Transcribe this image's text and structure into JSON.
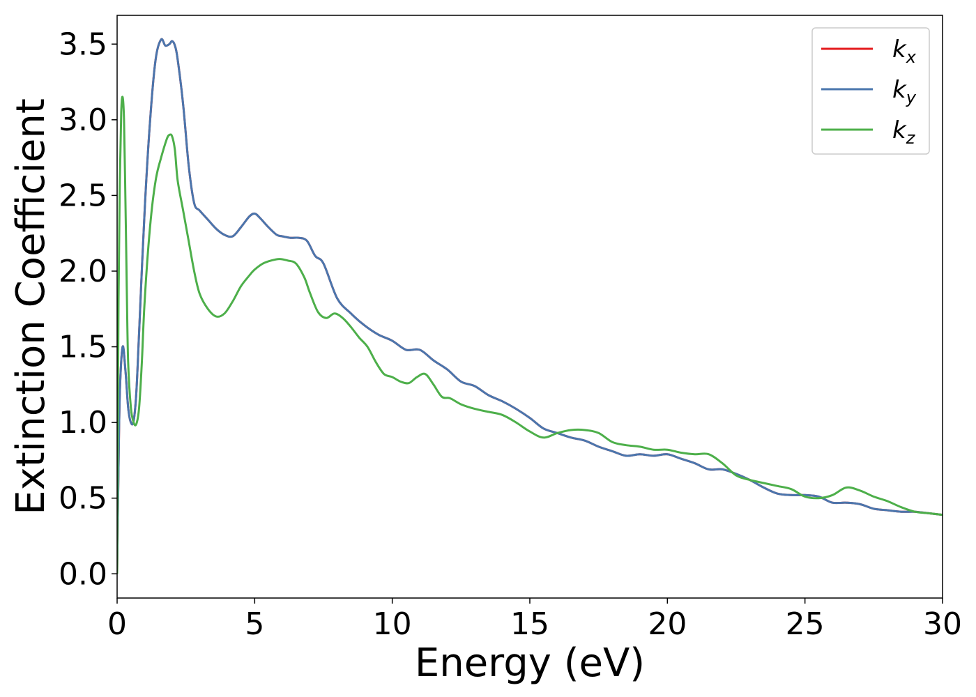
{
  "chart_data": {
    "type": "line",
    "title": "",
    "xlabel": "Energy (eV)",
    "ylabel": "Extinction Coefficient",
    "xlim": [
      0,
      30
    ],
    "ylim": [
      -0.16,
      3.69
    ],
    "xticks": [
      0,
      5,
      10,
      15,
      20,
      25,
      30
    ],
    "xtick_labels": [
      "0",
      "5",
      "10",
      "15",
      "20",
      "25",
      "30"
    ],
    "yticks": [
      0.0,
      0.5,
      1.0,
      1.5,
      2.0,
      2.5,
      3.0,
      3.5
    ],
    "ytick_labels": [
      "0.0",
      "0.5",
      "1.0",
      "1.5",
      "2.0",
      "2.5",
      "3.0",
      "3.5"
    ],
    "grid": false,
    "legend_position": "top-right",
    "series": [
      {
        "name": "k_x",
        "legend_base": "k",
        "legend_sub": "x",
        "color": "#e41a1c",
        "x": [
          0.0,
          0.05,
          0.1,
          0.2,
          0.3,
          0.4,
          0.5,
          0.6,
          0.7,
          0.8,
          1.0,
          1.2,
          1.4,
          1.6,
          1.75,
          1.9,
          2.0,
          2.1,
          2.2,
          2.4,
          2.6,
          2.8,
          3.0,
          3.3,
          3.6,
          3.9,
          4.2,
          4.5,
          4.8,
          5.0,
          5.2,
          5.5,
          5.8,
          6.0,
          6.3,
          6.6,
          6.9,
          7.2,
          7.5,
          8.0,
          8.5,
          9.0,
          9.5,
          10.0,
          10.5,
          11.0,
          11.5,
          12.0,
          12.5,
          13.0,
          13.5,
          14.0,
          14.5,
          15.0,
          15.5,
          16.0,
          16.5,
          17.0,
          17.5,
          18.0,
          18.5,
          19.0,
          19.5,
          20.0,
          20.5,
          21.0,
          21.5,
          22.0,
          22.5,
          23.0,
          23.5,
          24.0,
          24.5,
          25.0,
          25.5,
          26.0,
          26.5,
          27.0,
          27.5,
          28.0,
          28.5,
          29.0,
          29.5,
          30.0
        ],
        "y": [
          0.0,
          0.7,
          1.2,
          1.5,
          1.35,
          1.1,
          1.0,
          1.01,
          1.2,
          1.6,
          2.4,
          3.0,
          3.4,
          3.53,
          3.49,
          3.5,
          3.52,
          3.49,
          3.4,
          3.1,
          2.7,
          2.45,
          2.4,
          2.34,
          2.28,
          2.24,
          2.23,
          2.29,
          2.36,
          2.38,
          2.35,
          2.29,
          2.24,
          2.23,
          2.22,
          2.22,
          2.2,
          2.1,
          2.05,
          1.82,
          1.72,
          1.64,
          1.58,
          1.54,
          1.48,
          1.48,
          1.41,
          1.35,
          1.27,
          1.24,
          1.18,
          1.14,
          1.09,
          1.03,
          0.96,
          0.93,
          0.9,
          0.88,
          0.84,
          0.81,
          0.78,
          0.79,
          0.78,
          0.79,
          0.76,
          0.73,
          0.69,
          0.69,
          0.66,
          0.62,
          0.57,
          0.53,
          0.52,
          0.52,
          0.51,
          0.47,
          0.47,
          0.46,
          0.43,
          0.42,
          0.41,
          0.41,
          0.4,
          0.39
        ]
      },
      {
        "name": "k_y",
        "legend_base": "k",
        "legend_sub": "y",
        "color": "#4a76ad",
        "x": [
          0.0,
          0.05,
          0.1,
          0.2,
          0.3,
          0.4,
          0.5,
          0.6,
          0.7,
          0.8,
          1.0,
          1.2,
          1.4,
          1.6,
          1.75,
          1.9,
          2.0,
          2.1,
          2.2,
          2.4,
          2.6,
          2.8,
          3.0,
          3.3,
          3.6,
          3.9,
          4.2,
          4.5,
          4.8,
          5.0,
          5.2,
          5.5,
          5.8,
          6.0,
          6.3,
          6.6,
          6.9,
          7.2,
          7.5,
          8.0,
          8.5,
          9.0,
          9.5,
          10.0,
          10.5,
          11.0,
          11.5,
          12.0,
          12.5,
          13.0,
          13.5,
          14.0,
          14.5,
          15.0,
          15.5,
          16.0,
          16.5,
          17.0,
          17.5,
          18.0,
          18.5,
          19.0,
          19.5,
          20.0,
          20.5,
          21.0,
          21.5,
          22.0,
          22.5,
          23.0,
          23.5,
          24.0,
          24.5,
          25.0,
          25.5,
          26.0,
          26.5,
          27.0,
          27.5,
          28.0,
          28.5,
          29.0,
          29.5,
          30.0
        ],
        "y": [
          0.0,
          0.7,
          1.2,
          1.5,
          1.35,
          1.1,
          1.0,
          1.01,
          1.2,
          1.6,
          2.4,
          3.0,
          3.4,
          3.53,
          3.49,
          3.5,
          3.52,
          3.49,
          3.4,
          3.1,
          2.7,
          2.45,
          2.4,
          2.34,
          2.28,
          2.24,
          2.23,
          2.29,
          2.36,
          2.38,
          2.35,
          2.29,
          2.24,
          2.23,
          2.22,
          2.22,
          2.2,
          2.1,
          2.05,
          1.82,
          1.72,
          1.64,
          1.58,
          1.54,
          1.48,
          1.48,
          1.41,
          1.35,
          1.27,
          1.24,
          1.18,
          1.14,
          1.09,
          1.03,
          0.96,
          0.93,
          0.9,
          0.88,
          0.84,
          0.81,
          0.78,
          0.79,
          0.78,
          0.79,
          0.76,
          0.73,
          0.69,
          0.69,
          0.66,
          0.62,
          0.57,
          0.53,
          0.52,
          0.52,
          0.51,
          0.47,
          0.47,
          0.46,
          0.43,
          0.42,
          0.41,
          0.41,
          0.4,
          0.39
        ]
      },
      {
        "name": "k_z",
        "legend_base": "k",
        "legend_sub": "z",
        "color": "#4daf4a",
        "x": [
          0.0,
          0.05,
          0.1,
          0.15,
          0.2,
          0.25,
          0.3,
          0.35,
          0.4,
          0.5,
          0.6,
          0.7,
          0.8,
          0.9,
          1.0,
          1.2,
          1.4,
          1.6,
          1.8,
          1.9,
          2.0,
          2.1,
          2.2,
          2.4,
          2.6,
          2.8,
          3.0,
          3.3,
          3.6,
          3.9,
          4.2,
          4.5,
          4.8,
          5.0,
          5.3,
          5.6,
          5.9,
          6.2,
          6.5,
          6.8,
          7.0,
          7.3,
          7.6,
          7.9,
          8.2,
          8.5,
          8.8,
          9.1,
          9.4,
          9.7,
          10.0,
          10.3,
          10.6,
          10.9,
          11.2,
          11.5,
          11.8,
          12.1,
          12.5,
          13.0,
          13.5,
          14.0,
          14.5,
          15.0,
          15.5,
          16.0,
          16.5,
          17.0,
          17.5,
          18.0,
          18.5,
          19.0,
          19.5,
          20.0,
          20.5,
          21.0,
          21.5,
          22.0,
          22.5,
          23.0,
          23.5,
          24.0,
          24.5,
          25.0,
          25.5,
          26.0,
          26.5,
          27.0,
          27.5,
          28.0,
          28.5,
          29.0,
          29.5,
          30.0
        ],
        "y": [
          0.0,
          1.8,
          2.6,
          3.05,
          3.15,
          3.0,
          2.5,
          1.9,
          1.4,
          1.1,
          1.0,
          0.99,
          1.1,
          1.4,
          1.8,
          2.3,
          2.6,
          2.75,
          2.87,
          2.9,
          2.89,
          2.8,
          2.6,
          2.4,
          2.2,
          2.0,
          1.85,
          1.75,
          1.7,
          1.72,
          1.8,
          1.9,
          1.97,
          2.01,
          2.05,
          2.07,
          2.08,
          2.07,
          2.05,
          1.96,
          1.86,
          1.73,
          1.69,
          1.72,
          1.69,
          1.63,
          1.56,
          1.5,
          1.4,
          1.32,
          1.3,
          1.27,
          1.26,
          1.3,
          1.32,
          1.25,
          1.17,
          1.16,
          1.12,
          1.09,
          1.07,
          1.05,
          1.0,
          0.94,
          0.9,
          0.93,
          0.95,
          0.95,
          0.93,
          0.87,
          0.85,
          0.84,
          0.82,
          0.82,
          0.8,
          0.79,
          0.79,
          0.73,
          0.65,
          0.62,
          0.6,
          0.58,
          0.56,
          0.51,
          0.5,
          0.52,
          0.57,
          0.55,
          0.51,
          0.48,
          0.44,
          0.41,
          0.4,
          0.39
        ]
      }
    ]
  }
}
